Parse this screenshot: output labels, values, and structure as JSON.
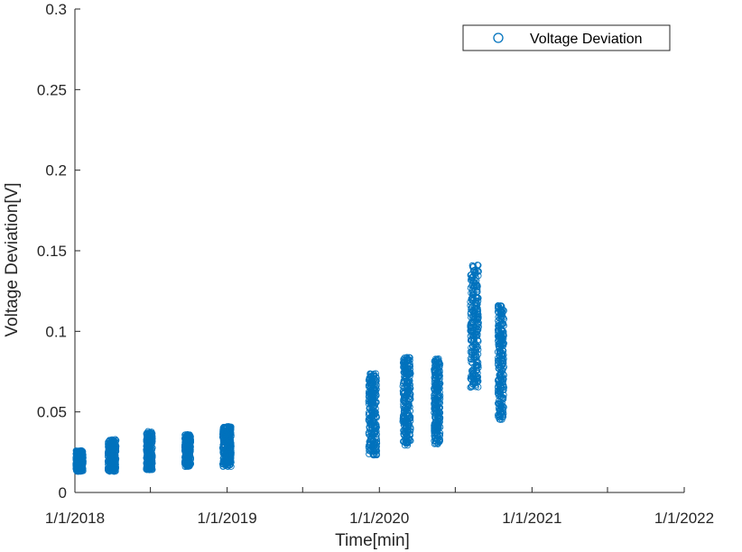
{
  "chart_data": {
    "type": "scatter",
    "xlabel": "Time[min]",
    "ylabel": "Voltage Deviation[V]",
    "xlim": [
      "2018-01-01",
      "2022-01-01"
    ],
    "ylim": [
      0,
      0.3
    ],
    "x_ticks": [
      {
        "date": "2018-01-01",
        "label": "1/1/2018"
      },
      {
        "date": "2018-07-01",
        "label": ""
      },
      {
        "date": "2019-01-01",
        "label": "1/1/2019"
      },
      {
        "date": "2019-07-01",
        "label": ""
      },
      {
        "date": "2020-01-01",
        "label": "1/1/2020"
      },
      {
        "date": "2020-07-01",
        "label": ""
      },
      {
        "date": "2021-01-01",
        "label": "1/1/2021"
      },
      {
        "date": "2021-07-01",
        "label": ""
      },
      {
        "date": "2022-01-01",
        "label": "1/1/2022"
      }
    ],
    "y_ticks": [
      {
        "value": 0,
        "label": "0"
      },
      {
        "value": 0.05,
        "label": "0.05"
      },
      {
        "value": 0.1,
        "label": "0.1"
      },
      {
        "value": 0.15,
        "label": "0.15"
      },
      {
        "value": 0.2,
        "label": "0.2"
      },
      {
        "value": 0.25,
        "label": "0.25"
      },
      {
        "value": 0.3,
        "label": "0.3"
      }
    ],
    "grid": false,
    "legend_position": "top-right",
    "series": [
      {
        "name": "Voltage Deviation",
        "color": "#0072BD",
        "marker": "circle-open",
        "clusters": [
          {
            "date_start": "2018-01-03",
            "date_end": "2018-01-21",
            "y_min": 0.013,
            "y_max": 0.026
          },
          {
            "date_start": "2018-03-21",
            "date_end": "2018-04-10",
            "y_min": 0.013,
            "y_max": 0.033
          },
          {
            "date_start": "2018-06-21",
            "date_end": "2018-07-06",
            "y_min": 0.014,
            "y_max": 0.038
          },
          {
            "date_start": "2018-09-21",
            "date_end": "2018-10-06",
            "y_min": 0.016,
            "y_max": 0.036
          },
          {
            "date_start": "2018-12-21",
            "date_end": "2019-01-11",
            "y_min": 0.016,
            "y_max": 0.041
          },
          {
            "date_start": "2019-12-06",
            "date_end": "2019-12-26",
            "y_min": 0.023,
            "y_max": 0.074
          },
          {
            "date_start": "2020-02-26",
            "date_end": "2020-03-16",
            "y_min": 0.029,
            "y_max": 0.084
          },
          {
            "date_start": "2020-05-11",
            "date_end": "2020-05-26",
            "y_min": 0.03,
            "y_max": 0.083
          },
          {
            "date_start": "2020-08-06",
            "date_end": "2020-08-26",
            "y_min": 0.065,
            "y_max": 0.142
          },
          {
            "date_start": "2020-10-11",
            "date_end": "2020-10-26",
            "y_min": 0.045,
            "y_max": 0.116
          }
        ]
      }
    ]
  }
}
